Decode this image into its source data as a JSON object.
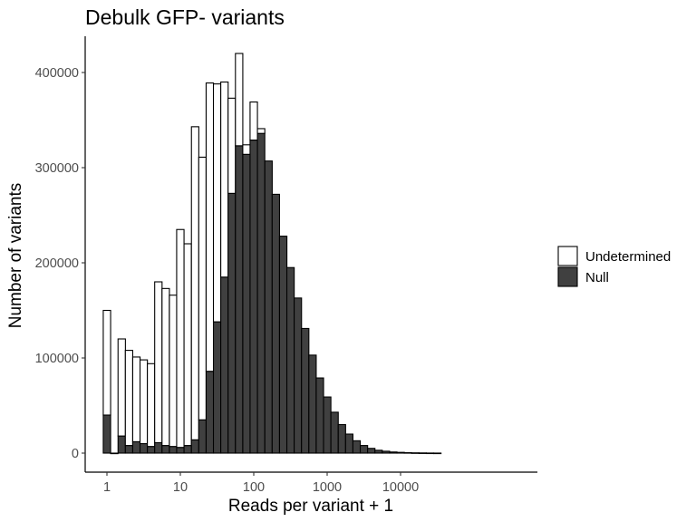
{
  "chart_data": {
    "type": "bar",
    "title": "Debulk GFP- variants",
    "xlabel": "Reads per variant + 1",
    "ylabel": "Number of variants",
    "x_scale": "log10",
    "x_ticks": [
      1,
      10,
      100,
      1000,
      10000
    ],
    "x_tick_labels": [
      "1",
      "10",
      "100",
      "1000",
      "10000"
    ],
    "y_ticks": [
      0,
      100000,
      200000,
      300000,
      400000
    ],
    "y_tick_labels": [
      "0",
      "100000",
      "200000",
      "300000",
      "400000"
    ],
    "ylim": [
      0,
      420000
    ],
    "grid": false,
    "legend_position": "right",
    "bin_centers": [
      1.0,
      1.26,
      1.59,
      2.0,
      2.52,
      3.17,
      3.99,
      5.02,
      6.32,
      7.96,
      10.0,
      12.6,
      15.9,
      20.0,
      25.2,
      31.7,
      39.9,
      50.2,
      63.2,
      79.6,
      100,
      126,
      159,
      200,
      252,
      317,
      399,
      502,
      632,
      796,
      1002,
      1262,
      1589,
      2000,
      2518,
      3170,
      3990,
      5024,
      6325,
      7962,
      10024,
      12619,
      15886,
      20000,
      25178,
      31698
    ],
    "series": [
      {
        "name": "Undetermined",
        "color": "#ffffff",
        "values": [
          110000,
          0,
          102000,
          100000,
          89000,
          88000,
          87000,
          169000,
          165000,
          159000,
          229000,
          212000,
          329000,
          276000,
          303000,
          250000,
          205000,
          100000,
          97000,
          10000,
          40000,
          5000,
          0,
          0,
          0,
          0,
          0,
          0,
          0,
          0,
          0,
          0,
          0,
          0,
          0,
          0,
          0,
          0,
          0,
          0,
          0,
          0,
          0,
          0,
          0,
          0
        ]
      },
      {
        "name": "Null",
        "color": "#404040",
        "values": [
          40000,
          0,
          18000,
          8000,
          12000,
          10000,
          7000,
          11000,
          8000,
          7000,
          6000,
          8000,
          14000,
          35000,
          86000,
          138000,
          185000,
          273000,
          323000,
          314000,
          329000,
          336000,
          307000,
          272000,
          228000,
          195000,
          163000,
          131000,
          103000,
          79000,
          59000,
          43000,
          30000,
          20000,
          13000,
          8000,
          5000,
          3000,
          2000,
          1200,
          800,
          500,
          300,
          200,
          100,
          50
        ]
      }
    ]
  }
}
